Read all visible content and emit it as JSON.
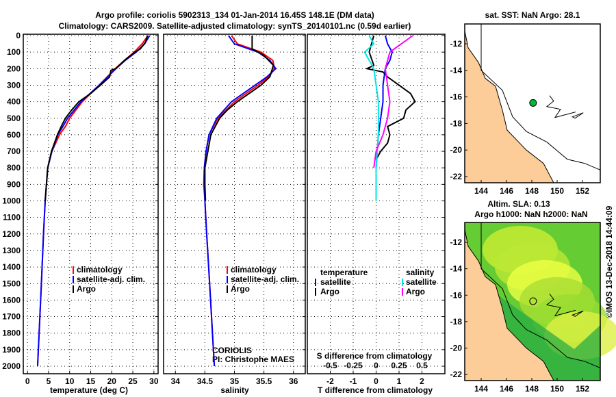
{
  "title_line1": "Argo profile: coriolis 5902313_134 01-Jan-2014 16.45S 148.1E (DM data)",
  "title_line2": "Climatology: CARS2009. Satellite-adjusted climatology: synTS_20140101.nc (0.59d earlier)",
  "watermark": "©IMOS 13-Dec-2018 14:44:09",
  "colors": {
    "clim": "#ff0000",
    "sat": "#0000ff",
    "argo": "#000000",
    "s_sat": "#00e5e5",
    "s_argo": "#ff00ff",
    "land": "#fccc99",
    "dot": "#00bb33"
  },
  "chart_data": [
    {
      "type": "line",
      "name": "temperature",
      "xlabel": "temperature (deg C)",
      "xlim": [
        -1,
        31
      ],
      "xticks": [
        0,
        5,
        10,
        15,
        20,
        25,
        30
      ],
      "ylim": [
        0,
        2040
      ],
      "yticks": [
        0,
        100,
        200,
        300,
        400,
        500,
        600,
        700,
        800,
        900,
        1000,
        1100,
        1200,
        1300,
        1400,
        1500,
        1600,
        1700,
        1800,
        1900,
        2000
      ],
      "legend": [
        "climatology",
        "satellite-adj. clim.",
        "Argo"
      ],
      "series": [
        {
          "name": "climatology",
          "depth": [
            0,
            50,
            100,
            150,
            200,
            300,
            400,
            500,
            550,
            600,
            700,
            800,
            1000,
            1200,
            1500,
            2000
          ],
          "values": [
            28.6,
            27.2,
            25.3,
            23,
            20.8,
            17,
            13,
            10,
            9,
            7.6,
            5.8,
            4.8,
            4.2,
            3.8,
            3.3,
            2.4
          ]
        },
        {
          "name": "satellite-adj. clim.",
          "depth": [
            0,
            50,
            100,
            150,
            200,
            300,
            400,
            500,
            550,
            600,
            700,
            800,
            1000,
            1200,
            1500,
            2000
          ],
          "values": [
            29,
            27.8,
            25.8,
            23.2,
            21,
            17,
            12.7,
            9.5,
            8.4,
            7.2,
            5.8,
            4.8,
            4.2,
            3.8,
            3.3,
            2.4
          ]
        },
        {
          "name": "Argo",
          "depth": [
            0,
            40,
            80,
            100,
            150,
            200,
            210,
            250,
            300,
            350,
            400,
            450,
            500,
            550,
            600,
            700,
            800,
            1000
          ],
          "values": [
            28.5,
            28,
            26.8,
            25.5,
            23,
            21,
            19.8,
            19.5,
            17.3,
            15,
            12.2,
            10.5,
            9,
            8,
            7.1,
            5.7,
            4.8,
            4.2
          ]
        }
      ]
    },
    {
      "type": "line",
      "name": "salinity",
      "xlabel": "salinity",
      "xlim": [
        33.8,
        36.2
      ],
      "xticks": [
        34,
        34.5,
        35,
        35.5,
        36
      ],
      "legend": [
        "climatology",
        "satellite-adj. clim.",
        "Argo"
      ],
      "annotation": [
        "CORIOLIS",
        "PI: Christophe MAES"
      ],
      "series": [
        {
          "name": "climatology",
          "depth": [
            0,
            50,
            100,
            150,
            200,
            250,
            300,
            400,
            500,
            600,
            700,
            800,
            900,
            1000,
            1200,
            1500,
            2000
          ],
          "values": [
            34.95,
            35.05,
            35.45,
            35.65,
            35.68,
            35.58,
            35.4,
            35.0,
            34.72,
            34.57,
            34.52,
            34.49,
            34.48,
            34.5,
            34.53,
            34.58,
            34.66
          ]
        },
        {
          "name": "satellite-adj. clim.",
          "depth": [
            0,
            50,
            100,
            150,
            200,
            250,
            300,
            400,
            500,
            600,
            700,
            800,
            900,
            1000,
            1200,
            1500,
            2000
          ],
          "values": [
            34.9,
            35.0,
            35.4,
            35.6,
            35.7,
            35.55,
            35.35,
            34.95,
            34.7,
            34.57,
            34.52,
            34.49,
            34.49,
            34.5,
            34.53,
            34.58,
            34.66
          ]
        },
        {
          "name": "Argo",
          "depth": [
            0,
            80,
            100,
            120,
            180,
            250,
            300,
            350,
            400,
            450,
            500,
            600,
            700,
            800,
            900,
            1000
          ],
          "values": [
            35.3,
            35.3,
            35.4,
            35.5,
            35.66,
            35.6,
            35.45,
            35.25,
            35.05,
            34.88,
            34.75,
            34.6,
            34.55,
            34.5,
            34.5,
            34.51
          ]
        }
      ]
    },
    {
      "type": "line",
      "name": "differences",
      "xlabel": "T difference from climatology",
      "xlim": [
        -3,
        3
      ],
      "xticks": [
        -2,
        -1,
        0,
        1,
        2
      ],
      "x2label": "S difference from climatology",
      "x2ticks": [
        "-0.5",
        "-0.25",
        "0",
        "0.25",
        "0.5"
      ],
      "legend_t": {
        "title": "temperature",
        "items": [
          "satellite",
          "Argo"
        ]
      },
      "legend_s": {
        "title": "salinity",
        "items": [
          "satellite",
          "Argo"
        ]
      },
      "series": [
        {
          "name": "T satellite",
          "depth": [
            0,
            50,
            100,
            150,
            200,
            300,
            400,
            500,
            600,
            700,
            800,
            900
          ],
          "values": [
            0.4,
            0.5,
            0.7,
            0.6,
            0.4,
            0.3,
            0.3,
            0.2,
            0.1,
            0.05,
            0,
            0
          ]
        },
        {
          "name": "T Argo",
          "depth": [
            0,
            100,
            180,
            200,
            220,
            250,
            300,
            350,
            400,
            450,
            500,
            550,
            600,
            650,
            700,
            750
          ],
          "values": [
            -0.1,
            -0.3,
            -0.1,
            -0.4,
            0.3,
            0.5,
            1.0,
            1.5,
            1.7,
            1.3,
            1.2,
            0.5,
            0.6,
            0.5,
            0.2,
            0
          ]
        },
        {
          "name": "S satellite",
          "depth": [
            0,
            50,
            100,
            150,
            200,
            300,
            400,
            500,
            600,
            700,
            800,
            900,
            1000
          ],
          "values": [
            -0.3,
            -0.1,
            -0.5,
            -0.3,
            -0.1,
            0,
            0.1,
            0.1,
            0.1,
            0.05,
            0,
            0,
            0
          ]
        },
        {
          "name": "S Argo",
          "depth": [
            0,
            50,
            100,
            150,
            200,
            300,
            400,
            500,
            600,
            700,
            800
          ],
          "values": [
            1.6,
            1.1,
            0.6,
            0.5,
            0.4,
            0.5,
            0.6,
            0.5,
            0.3,
            0,
            -0.1
          ]
        }
      ]
    }
  ],
  "map_sst": {
    "title": "sat. SST: NaN Argo: 28.1",
    "lon_ticks": [
      144,
      146,
      148,
      150,
      152
    ],
    "lat_ticks": [
      -12,
      -14,
      -16,
      -18,
      -20,
      -22
    ],
    "float_lon": 148.1,
    "float_lat": -16.45
  },
  "map_sla": {
    "title1": "Altim. SLA: 0.13",
    "title2": "Argo h1000: NaN h2000: NaN",
    "lon_ticks": [
      144,
      146,
      148,
      150,
      152
    ],
    "lat_ticks": [
      -12,
      -14,
      -16,
      -18,
      -20,
      -22
    ]
  }
}
